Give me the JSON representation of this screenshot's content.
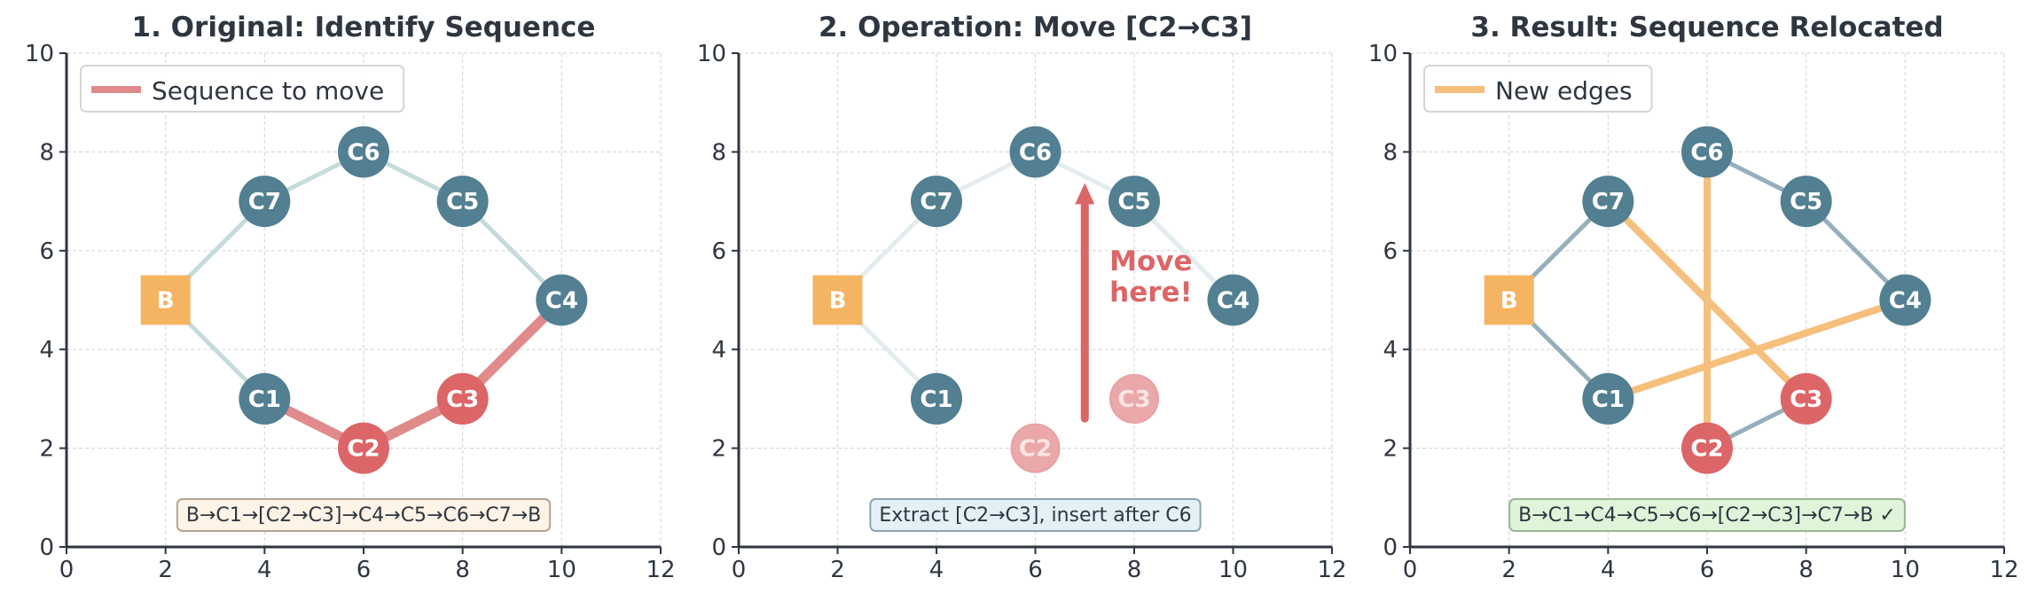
{
  "colors": {
    "axis": "#2e3640",
    "grid": "#d6d9dc",
    "node": "#527f91",
    "highlight": "#dc6567",
    "base": "#f5b461",
    "new_edge": "#f5bf7c",
    "title": "#2e3640"
  },
  "panels": [
    {
      "title": "1. Original: Identify Sequence",
      "xlim": [
        0,
        12
      ],
      "ylim": [
        0,
        10
      ],
      "xticks": [
        "0",
        "2",
        "4",
        "6",
        "8",
        "10",
        "12"
      ],
      "yticks": [
        "0",
        "2",
        "4",
        "6",
        "8",
        "10"
      ],
      "legend": {
        "label": "Sequence to move",
        "color": "#e08a8c"
      },
      "edges": [
        {
          "from": "B",
          "to": "C1",
          "style": "faint"
        },
        {
          "from": "C4",
          "to": "C5",
          "style": "faint"
        },
        {
          "from": "C5",
          "to": "C6",
          "style": "faint"
        },
        {
          "from": "C6",
          "to": "C7",
          "style": "faint"
        },
        {
          "from": "C7",
          "to": "B",
          "style": "faint"
        },
        {
          "from": "C1",
          "to": "C2",
          "style": "red"
        },
        {
          "from": "C2",
          "to": "C3",
          "style": "red"
        },
        {
          "from": "C3",
          "to": "C4",
          "style": "red"
        }
      ],
      "nodes": [
        {
          "id": "B",
          "label": "B",
          "x": 2,
          "y": 5,
          "kind": "base"
        },
        {
          "id": "C1",
          "label": "C1",
          "x": 4,
          "y": 3,
          "kind": "node"
        },
        {
          "id": "C2",
          "label": "C2",
          "x": 6,
          "y": 2,
          "kind": "red"
        },
        {
          "id": "C3",
          "label": "C3",
          "x": 8,
          "y": 3,
          "kind": "red"
        },
        {
          "id": "C4",
          "label": "C4",
          "x": 10,
          "y": 5,
          "kind": "node"
        },
        {
          "id": "C5",
          "label": "C5",
          "x": 8,
          "y": 7,
          "kind": "node"
        },
        {
          "id": "C6",
          "label": "C6",
          "x": 6,
          "y": 8,
          "kind": "node"
        },
        {
          "id": "C7",
          "label": "C7",
          "x": 4,
          "y": 7,
          "kind": "node"
        }
      ],
      "caption": {
        "text": "B→C1→[C2→C3]→C4→C5→C6→C7→B",
        "bg": "#fdf3e6",
        "border": "#b5a58f"
      }
    },
    {
      "title": "2. Operation: Move [C2→C3]",
      "xlim": [
        0,
        12
      ],
      "ylim": [
        0,
        10
      ],
      "xticks": [
        "0",
        "2",
        "4",
        "6",
        "8",
        "10",
        "12"
      ],
      "yticks": [
        "0",
        "2",
        "4",
        "6",
        "8",
        "10"
      ],
      "edges": [
        {
          "from": "B",
          "to": "C1",
          "style": "veryfaint"
        },
        {
          "from": "B",
          "to": "C7",
          "style": "veryfaint"
        },
        {
          "from": "C7",
          "to": "C6",
          "style": "veryfaint"
        },
        {
          "from": "C6",
          "to": "C5",
          "style": "veryfaint"
        },
        {
          "from": "C5",
          "to": "C4",
          "style": "veryfaint"
        }
      ],
      "nodes": [
        {
          "id": "B",
          "label": "B",
          "x": 2,
          "y": 5,
          "kind": "base"
        },
        {
          "id": "C1",
          "label": "C1",
          "x": 4,
          "y": 3,
          "kind": "node"
        },
        {
          "id": "C2",
          "label": "C2",
          "x": 6,
          "y": 2,
          "kind": "ghost"
        },
        {
          "id": "C3",
          "label": "C3",
          "x": 8,
          "y": 3,
          "kind": "ghost"
        },
        {
          "id": "C4",
          "label": "C4",
          "x": 10,
          "y": 5,
          "kind": "node"
        },
        {
          "id": "C5",
          "label": "C5",
          "x": 8,
          "y": 7,
          "kind": "node"
        },
        {
          "id": "C6",
          "label": "C6",
          "x": 6,
          "y": 8,
          "kind": "node"
        },
        {
          "id": "C7",
          "label": "C7",
          "x": 4,
          "y": 7,
          "kind": "node"
        }
      ],
      "arrow": {
        "from": [
          7,
          2.6
        ],
        "to": [
          7,
          7.3
        ],
        "label_lines": [
          "Move",
          "here!"
        ],
        "label_at": [
          7.5,
          5.6
        ]
      },
      "caption": {
        "text": "Extract [C2→C3], insert after C6",
        "bg": "#e4f0f6",
        "border": "#8fa3ae"
      }
    },
    {
      "title": "3. Result: Sequence Relocated",
      "xlim": [
        0,
        12
      ],
      "ylim": [
        0,
        10
      ],
      "xticks": [
        "0",
        "2",
        "4",
        "6",
        "8",
        "10",
        "12"
      ],
      "yticks": [
        "0",
        "2",
        "4",
        "6",
        "8",
        "10"
      ],
      "legend": {
        "label": "New edges",
        "color": "#f5bf7c"
      },
      "edges": [
        {
          "from": "B",
          "to": "C1",
          "style": "medium"
        },
        {
          "from": "B",
          "to": "C7",
          "style": "medium"
        },
        {
          "from": "C6",
          "to": "C5",
          "style": "medium"
        },
        {
          "from": "C5",
          "to": "C4",
          "style": "medium"
        },
        {
          "from": "C2",
          "to": "C3",
          "style": "medium"
        },
        {
          "from": "C1",
          "to": "C4",
          "style": "new"
        },
        {
          "from": "C6",
          "to": "C2",
          "style": "new"
        },
        {
          "from": "C3",
          "to": "C7",
          "style": "new"
        }
      ],
      "nodes": [
        {
          "id": "B",
          "label": "B",
          "x": 2,
          "y": 5,
          "kind": "base"
        },
        {
          "id": "C1",
          "label": "C1",
          "x": 4,
          "y": 3,
          "kind": "node"
        },
        {
          "id": "C2",
          "label": "C2",
          "x": 6,
          "y": 2,
          "kind": "red"
        },
        {
          "id": "C3",
          "label": "C3",
          "x": 8,
          "y": 3,
          "kind": "red"
        },
        {
          "id": "C4",
          "label": "C4",
          "x": 10,
          "y": 5,
          "kind": "node"
        },
        {
          "id": "C5",
          "label": "C5",
          "x": 8,
          "y": 7,
          "kind": "node"
        },
        {
          "id": "C6",
          "label": "C6",
          "x": 6,
          "y": 8,
          "kind": "node"
        },
        {
          "id": "C7",
          "label": "C7",
          "x": 4,
          "y": 7,
          "kind": "node"
        }
      ],
      "caption": {
        "text": "B→C1→C4→C5→C6→[C2→C3]→C7→B ✓",
        "bg": "#dff5da",
        "border": "#98b593"
      }
    }
  ]
}
